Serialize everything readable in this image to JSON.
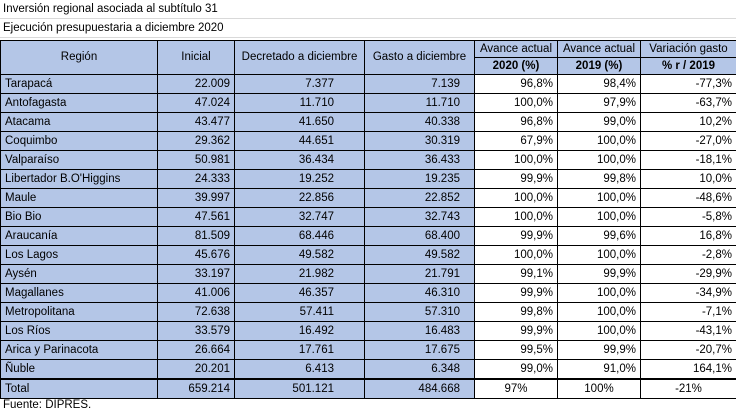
{
  "title": "Inversión regional asociada al subtítulo 31",
  "subtitle": "Ejecución presupuestaria a diciembre 2020",
  "headers": {
    "region": "Región",
    "inicial": "Inicial",
    "decretado": "Decretado a diciembre",
    "gasto": "Gasto a diciembre",
    "avance2020_top": "Avance actual",
    "avance2020_bottom": "2020 (%)",
    "avance2019_top": "Avance actual",
    "avance2019_bottom": "2019 (%)",
    "variacion_top": "Variación gasto",
    "variacion_bottom": "% r / 2019"
  },
  "rows": [
    {
      "region": "Tarapacá",
      "inicial": "22.009",
      "decretado": "7.377",
      "gasto": "7.139",
      "av2020": "96,8%",
      "av2019": "98,4%",
      "var": "-77,3%"
    },
    {
      "region": "Antofagasta",
      "inicial": "47.024",
      "decretado": "11.710",
      "gasto": "11.710",
      "av2020": "100,0%",
      "av2019": "97,9%",
      "var": "-63,7%"
    },
    {
      "region": "Atacama",
      "inicial": "43.477",
      "decretado": "41.650",
      "gasto": "40.338",
      "av2020": "96,8%",
      "av2019": "99,0%",
      "var": "10,2%"
    },
    {
      "region": "Coquimbo",
      "inicial": "29.362",
      "decretado": "44.651",
      "gasto": "30.319",
      "av2020": "67,9%",
      "av2019": "100,0%",
      "var": "-27,0%"
    },
    {
      "region": "Valparaíso",
      "inicial": "50.981",
      "decretado": "36.434",
      "gasto": "36.433",
      "av2020": "100,0%",
      "av2019": "100,0%",
      "var": "-18,1%"
    },
    {
      "region": "Libertador B.O'Higgins",
      "inicial": "24.333",
      "decretado": "19.252",
      "gasto": "19.235",
      "av2020": "99,9%",
      "av2019": "99,8%",
      "var": "10,0%"
    },
    {
      "region": "Maule",
      "inicial": "39.997",
      "decretado": "22.856",
      "gasto": "22.852",
      "av2020": "100,0%",
      "av2019": "100,0%",
      "var": "-48,6%"
    },
    {
      "region": "Bio Bio",
      "inicial": "47.561",
      "decretado": "32.747",
      "gasto": "32.743",
      "av2020": "100,0%",
      "av2019": "100,0%",
      "var": "-5,8%"
    },
    {
      "region": "Araucanía",
      "inicial": "81.509",
      "decretado": "68.446",
      "gasto": "68.400",
      "av2020": "99,9%",
      "av2019": "99,6%",
      "var": "16,8%"
    },
    {
      "region": "Los Lagos",
      "inicial": "45.676",
      "decretado": "49.582",
      "gasto": "49.582",
      "av2020": "100,0%",
      "av2019": "100,0%",
      "var": "-2,8%"
    },
    {
      "region": "Aysén",
      "inicial": "33.197",
      "decretado": "21.982",
      "gasto": "21.791",
      "av2020": "99,1%",
      "av2019": "99,9%",
      "var": "-29,9%"
    },
    {
      "region": "Magallanes",
      "inicial": "41.006",
      "decretado": "46.357",
      "gasto": "46.310",
      "av2020": "99,9%",
      "av2019": "100,0%",
      "var": "-34,9%"
    },
    {
      "region": "Metropolitana",
      "inicial": "72.638",
      "decretado": "57.411",
      "gasto": "57.310",
      "av2020": "99,8%",
      "av2019": "100,0%",
      "var": "-7,1%"
    },
    {
      "region": "Los Ríos",
      "inicial": "33.579",
      "decretado": "16.492",
      "gasto": "16.483",
      "av2020": "99,9%",
      "av2019": "100,0%",
      "var": "-43,1%"
    },
    {
      "region": "Arica y Parinacota",
      "inicial": "26.664",
      "decretado": "17.761",
      "gasto": "17.675",
      "av2020": "99,5%",
      "av2019": "99,9%",
      "var": "-20,7%"
    },
    {
      "region": "Ñuble",
      "inicial": "20.201",
      "decretado": "6.413",
      "gasto": "6.348",
      "av2020": "99,0%",
      "av2019": "91,0%",
      "var": "164,1%"
    }
  ],
  "total": {
    "label": "Total",
    "inicial": "659.214",
    "decretado": "501.121",
    "gasto": "484.668",
    "av2020": "97%",
    "av2019": "100%",
    "var": "-21%"
  },
  "source": "Fuente: DIPRES.",
  "colors": {
    "header_fill": "#b4c6e7",
    "body_fill": "#ffffff"
  }
}
